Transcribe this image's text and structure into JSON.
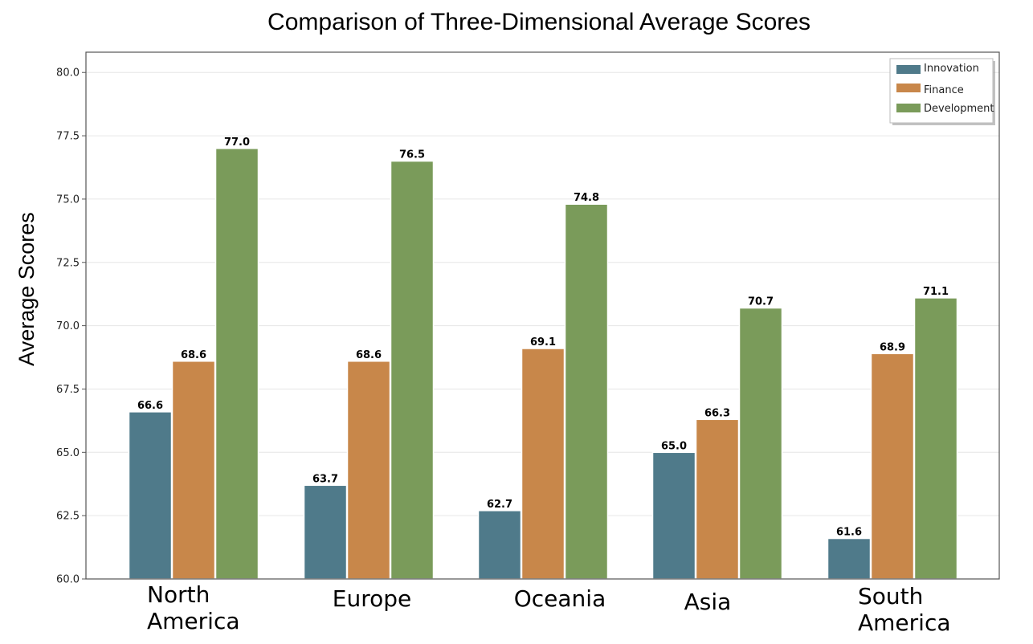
{
  "chart_data": {
    "type": "bar",
    "title": "Comparison of Three-Dimensional Average Scores",
    "xlabel": "",
    "ylabel": "Average Scores",
    "ylim": [
      60,
      80.8
    ],
    "yticks": [
      "60.0",
      "62.5",
      "65.0",
      "67.5",
      "70.0",
      "72.5",
      "75.0",
      "77.5",
      "80.0"
    ],
    "grid": true,
    "legend_position": "top-right",
    "categories": [
      "North America",
      "Europe",
      "Oceania",
      "Asia",
      "South America"
    ],
    "series": [
      {
        "name": "Innovation",
        "color": "#4f7a8a",
        "values": [
          66.6,
          63.7,
          62.7,
          65.0,
          61.6
        ]
      },
      {
        "name": "Finance",
        "color": "#c8874a",
        "values": [
          68.6,
          68.6,
          69.1,
          66.3,
          68.9
        ]
      },
      {
        "name": "Development",
        "color": "#7a9b5a",
        "values": [
          77.0,
          76.5,
          74.8,
          70.7,
          71.1
        ]
      }
    ]
  }
}
